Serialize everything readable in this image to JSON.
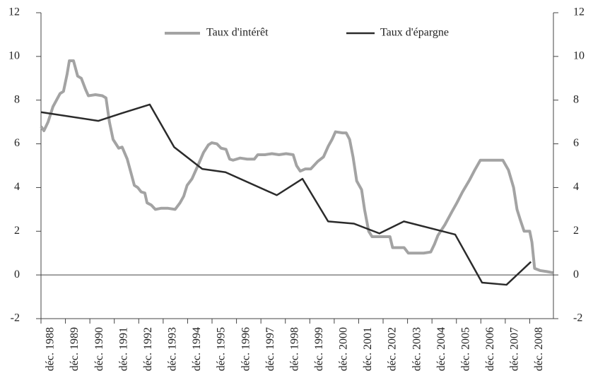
{
  "chart_data": {
    "type": "line",
    "x": [
      1988.0,
      1988.12,
      1988.29,
      1988.49,
      1988.78,
      1988.92,
      1989.07,
      1989.16,
      1989.33,
      1989.5,
      1989.65,
      1989.82,
      1989.94,
      1990.23,
      1990.51,
      1990.66,
      1990.8,
      1990.95,
      1991.18,
      1991.32,
      1991.53,
      1991.7,
      1991.82,
      1991.96,
      1992.1,
      1992.25,
      1992.34,
      1992.51,
      1992.68,
      1992.91,
      1993.2,
      1993.49,
      1993.69,
      1993.84,
      1993.98,
      1994.18,
      1994.42,
      1994.65,
      1994.85,
      1994.99,
      1995.2,
      1995.37,
      1995.57,
      1995.72,
      1995.86,
      1996.15,
      1996.44,
      1996.73,
      1996.87,
      1997.16,
      1997.45,
      1997.74,
      1998.03,
      1998.32,
      1998.46,
      1998.61,
      1998.81,
      1999.04,
      1999.33,
      1999.56,
      1999.76,
      1999.91,
      2000.05,
      2000.34,
      2000.49,
      2000.63,
      2000.77,
      2000.92,
      2001.12,
      2001.24,
      2001.41,
      2001.55,
      2001.79,
      2002.08,
      2002.28,
      2002.39,
      2002.57,
      2002.86,
      2003.03,
      2003.38,
      2003.66,
      2003.95,
      2004.1,
      2004.24,
      2004.53,
      2004.82,
      2005.02,
      2005.25,
      2005.54,
      2005.75,
      2005.98,
      2006.27,
      2006.55,
      2006.9,
      2007.13,
      2007.34,
      2007.48,
      2007.62,
      2007.77,
      2008.0,
      2008.09,
      2008.2,
      2008.43,
      2008.72,
      2008.95
    ],
    "series": [
      {
        "name": "Taux d'intérêt",
        "color": "#a3a3a3",
        "values": [
          6.8,
          6.6,
          7.0,
          7.7,
          8.3,
          8.4,
          9.2,
          9.8,
          9.8,
          9.1,
          9.0,
          8.5,
          8.2,
          8.25,
          8.2,
          8.1,
          7.0,
          6.2,
          5.8,
          5.85,
          5.3,
          4.6,
          4.1,
          4.0,
          3.8,
          3.75,
          3.3,
          3.2,
          3.0,
          3.05,
          3.05,
          3.0,
          3.3,
          3.6,
          4.1,
          4.4,
          5.0,
          5.6,
          5.95,
          6.05,
          6.0,
          5.8,
          5.75,
          5.3,
          5.25,
          5.35,
          5.3,
          5.3,
          5.5,
          5.5,
          5.55,
          5.5,
          5.55,
          5.5,
          5.0,
          4.75,
          4.85,
          4.85,
          5.2,
          5.4,
          5.9,
          6.2,
          6.55,
          6.5,
          6.5,
          6.2,
          5.4,
          4.3,
          3.9,
          3.0,
          2.0,
          1.75,
          1.75,
          1.75,
          1.75,
          1.25,
          1.25,
          1.25,
          1.0,
          1.0,
          1.0,
          1.05,
          1.4,
          1.8,
          2.3,
          2.9,
          3.3,
          3.8,
          4.35,
          4.8,
          5.25,
          5.25,
          5.25,
          5.25,
          4.8,
          4.0,
          3.0,
          2.5,
          2.0,
          2.0,
          1.5,
          0.3,
          0.2,
          0.15,
          0.1
        ]
      },
      {
        "name": "Taux d'épargne",
        "color": "#2b2b2b",
        "x": [
          1988.0,
          1990.35,
          1991.3,
          1992.45,
          1993.45,
          1994.6,
          1995.55,
          1997.65,
          1998.7,
          1999.75,
          2000.8,
          2001.85,
          2002.85,
          2004.95,
          2006.05,
          2007.05,
          2008.05
        ],
        "values": [
          7.45,
          7.05,
          7.4,
          7.8,
          5.85,
          4.85,
          4.7,
          3.65,
          4.4,
          2.45,
          2.35,
          1.9,
          2.45,
          1.85,
          -0.35,
          -0.45,
          0.6
        ]
      }
    ],
    "xlim": [
      1988,
      2008.97
    ],
    "xticks": [
      {
        "value": 1988,
        "label": "déc. 1988"
      },
      {
        "value": 1989,
        "label": "déc. 1989"
      },
      {
        "value": 1990,
        "label": "déc. 1990"
      },
      {
        "value": 1991,
        "label": "déc. 1991"
      },
      {
        "value": 1992,
        "label": "déc. 1992"
      },
      {
        "value": 1993,
        "label": "déc. 1993"
      },
      {
        "value": 1994,
        "label": "déc. 1994"
      },
      {
        "value": 1995,
        "label": "déc. 1995"
      },
      {
        "value": 1996,
        "label": "déc. 1996"
      },
      {
        "value": 1997,
        "label": "déc. 1997"
      },
      {
        "value": 1998,
        "label": "déc. 1998"
      },
      {
        "value": 1999,
        "label": "déc. 1999"
      },
      {
        "value": 2000,
        "label": "déc. 2000"
      },
      {
        "value": 2001,
        "label": "déc. 2001"
      },
      {
        "value": 2002,
        "label": "déc. 2002"
      },
      {
        "value": 2003,
        "label": "déc. 2003"
      },
      {
        "value": 2004,
        "label": "déc. 2004"
      },
      {
        "value": 2005,
        "label": "déc. 2005"
      },
      {
        "value": 2006,
        "label": "déc. 2006"
      },
      {
        "value": 2007,
        "label": "déc. 2007"
      },
      {
        "value": 2008,
        "label": "déc. 2008"
      }
    ],
    "ylim": [
      -2,
      12
    ],
    "yticks": [
      -2,
      0,
      2,
      4,
      6,
      8,
      10,
      12
    ],
    "y2lim": [
      -2,
      12
    ],
    "y2ticks": [
      -2,
      0,
      2,
      4,
      6,
      8,
      10,
      12
    ],
    "legend": "top"
  }
}
